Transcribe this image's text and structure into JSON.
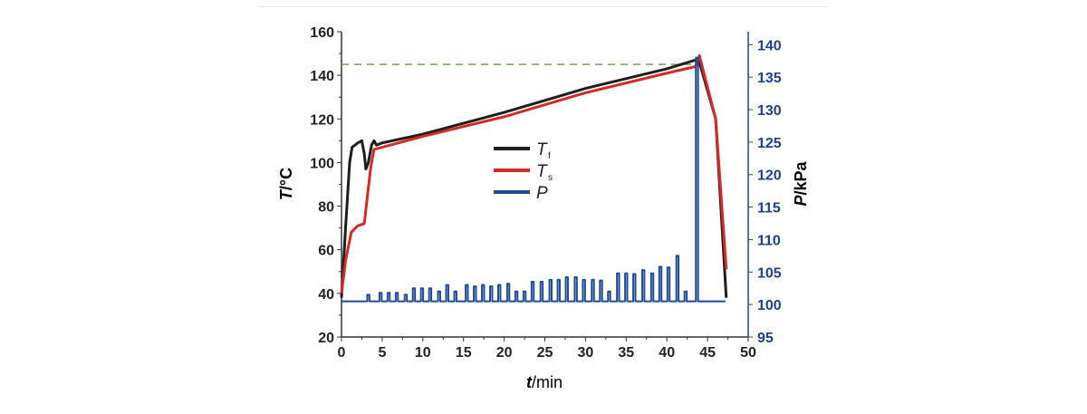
{
  "chart_data": {
    "type": "line",
    "xlabel": "t /min",
    "xlabel_var": "t",
    "xlabel_unit": "/min",
    "ylabel_left": "T /°C",
    "ylabel_left_var": "T",
    "ylabel_left_unit": "/°C",
    "ylabel_right": "P /kPa",
    "ylabel_right_var": "P",
    "ylabel_right_unit": "/kPa",
    "xlim": [
      0,
      50
    ],
    "ylim_left": [
      20,
      160
    ],
    "ylim_right": [
      95,
      142
    ],
    "xticks": [
      "0",
      "5",
      "10",
      "15",
      "20",
      "25",
      "30",
      "35",
      "40",
      "45",
      "50"
    ],
    "yticks_left": [
      "20",
      "40",
      "60",
      "80",
      "100",
      "120",
      "140",
      "160"
    ],
    "yticks_right": [
      "95",
      "100",
      "105",
      "110",
      "115",
      "120",
      "125",
      "130",
      "135",
      "140"
    ],
    "legend_position": "center-left",
    "reference_line": {
      "y": 145,
      "axis": "left",
      "style": "dashed",
      "color": "#6aa84f",
      "x_range": [
        0,
        43.5
      ]
    },
    "series": [
      {
        "name": "Tf",
        "label_main": "T",
        "label_sub": "f",
        "axis": "left",
        "color": "#1d1f1d",
        "points": [
          [
            0,
            38
          ],
          [
            0.5,
            70
          ],
          [
            1,
            100
          ],
          [
            1.3,
            107
          ],
          [
            2,
            109
          ],
          [
            2.5,
            110
          ],
          [
            2.8,
            104
          ],
          [
            3,
            97
          ],
          [
            3.3,
            100
          ],
          [
            3.7,
            108
          ],
          [
            4,
            110
          ],
          [
            4.3,
            108
          ],
          [
            5,
            109
          ],
          [
            10,
            113
          ],
          [
            20,
            123
          ],
          [
            30,
            134
          ],
          [
            40,
            143
          ],
          [
            43.5,
            147
          ],
          [
            44,
            146
          ],
          [
            46,
            120
          ],
          [
            47.3,
            38
          ]
        ]
      },
      {
        "name": "Ts",
        "label_main": "T",
        "label_sub": "s",
        "axis": "left",
        "color": "#d42a26",
        "points": [
          [
            0,
            40
          ],
          [
            0.5,
            55
          ],
          [
            1.2,
            68
          ],
          [
            2,
            71
          ],
          [
            2.8,
            72
          ],
          [
            3.2,
            85
          ],
          [
            3.6,
            98
          ],
          [
            4,
            106
          ],
          [
            5,
            107
          ],
          [
            10,
            112
          ],
          [
            20,
            121
          ],
          [
            30,
            132
          ],
          [
            40,
            141
          ],
          [
            43.5,
            144
          ],
          [
            44,
            149
          ],
          [
            46,
            120
          ],
          [
            47.3,
            51
          ]
        ]
      },
      {
        "name": "P",
        "label_main": "P",
        "label_sub": "",
        "axis": "right",
        "color": "#1f4a96",
        "baseline": 100.5,
        "x_range": [
          0,
          47.2
        ],
        "spikes": [
          [
            3.3,
            101.5
          ],
          [
            4.8,
            101.8
          ],
          [
            5.8,
            101.8
          ],
          [
            6.8,
            101.8
          ],
          [
            7.9,
            101.5
          ],
          [
            8.9,
            102.5
          ],
          [
            9.9,
            102.5
          ],
          [
            10.9,
            102.5
          ],
          [
            12,
            102
          ],
          [
            13,
            103
          ],
          [
            14,
            102
          ],
          [
            15.4,
            103
          ],
          [
            16.4,
            102.8
          ],
          [
            17.4,
            103
          ],
          [
            18.4,
            102.8
          ],
          [
            19.4,
            103
          ],
          [
            20.5,
            103.2
          ],
          [
            21.5,
            102
          ],
          [
            22.5,
            102
          ],
          [
            23.5,
            103.5
          ],
          [
            24.6,
            103.5
          ],
          [
            25.7,
            103.8
          ],
          [
            26.7,
            103.8
          ],
          [
            27.7,
            104.2
          ],
          [
            28.8,
            104.2
          ],
          [
            29.8,
            103.8
          ],
          [
            30.9,
            103.8
          ],
          [
            31.9,
            103.7
          ],
          [
            32.9,
            102
          ],
          [
            34,
            104.8
          ],
          [
            35,
            104.8
          ],
          [
            36,
            104.7
          ],
          [
            37.1,
            105.3
          ],
          [
            38.2,
            104.8
          ],
          [
            39.2,
            105.8
          ],
          [
            40.2,
            105.7
          ],
          [
            41.3,
            107.5
          ],
          [
            42.3,
            102
          ],
          [
            43.7,
            138
          ]
        ]
      }
    ]
  }
}
